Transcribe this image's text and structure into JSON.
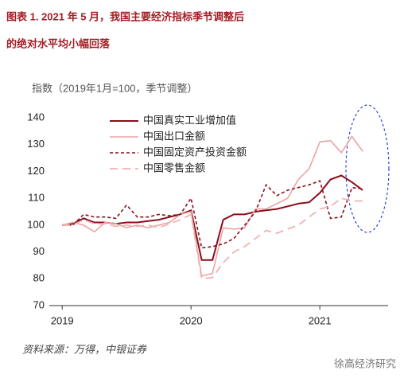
{
  "chart_data": {
    "type": "line",
    "title": "图表 1.  2021 年 5 月，我国主要经济指标季节调整后",
    "subtitle": "的绝对水平均小幅回落",
    "y_label": "指数（2019年1月=100，季节调整）",
    "source": "资料来源：万得，中银证券",
    "watermark": "徐高经济研究",
    "x": [
      2019,
      2019.083,
      2019.167,
      2019.25,
      2019.333,
      2019.417,
      2019.5,
      2019.583,
      2019.667,
      2019.75,
      2019.833,
      2019.917,
      2020,
      2020.083,
      2020.167,
      2020.25,
      2020.333,
      2020.417,
      2020.5,
      2020.583,
      2020.667,
      2020.75,
      2020.833,
      2020.917,
      2021,
      2021.083,
      2021.167,
      2021.25,
      2021.333
    ],
    "series": [
      {
        "name": "中国真实工业增加值",
        "color": "#8b0d1a",
        "style": "solid",
        "width": 2,
        "values": [
          100,
          100.5,
          102.5,
          101,
          101,
          100.5,
          101,
          101,
          101.5,
          102,
          103,
          104,
          105.5,
          87,
          87,
          102,
          104,
          104,
          105,
          105.5,
          106,
          107,
          108,
          108.5,
          112,
          117,
          118.5,
          116,
          113
        ]
      },
      {
        "name": "中国出口金额",
        "color": "#eca3a3",
        "style": "solid",
        "width": 1.6,
        "values": [
          100,
          101,
          100,
          97.5,
          101,
          100.5,
          99,
          100,
          99,
          100,
          101,
          104,
          105,
          81,
          82,
          99,
          98.5,
          99,
          106,
          106,
          108,
          110,
          117,
          121,
          131,
          131.5,
          127,
          133,
          127.5
        ]
      },
      {
        "name": "中国固定资产投资金额",
        "color": "#8b0d1a",
        "style": "dotted",
        "width": 1.6,
        "values": [
          100,
          100,
          104,
          103,
          103,
          102.5,
          107.5,
          103,
          103,
          104,
          103.5,
          104,
          110,
          91.5,
          92,
          93,
          95,
          100,
          105,
          115,
          111,
          113,
          114,
          115,
          116.5,
          102.5,
          103,
          114,
          113.5
        ]
      },
      {
        "name": "中国零售金额",
        "color": "#f0b3b3",
        "style": "dashed",
        "width": 1.8,
        "values": [
          100,
          100,
          102,
          100.5,
          100.5,
          99.5,
          100,
          99.5,
          100,
          99,
          100.5,
          102,
          104,
          80,
          80.5,
          86,
          90,
          92,
          95,
          98,
          97,
          98.5,
          100,
          103,
          106,
          107,
          110,
          109,
          109
        ]
      }
    ],
    "xlim": [
      2018.9,
      2021.53
    ],
    "xticks": [
      2019,
      2020,
      2021
    ],
    "ylim": [
      70,
      140
    ],
    "yticks": [
      70,
      80,
      90,
      100,
      110,
      120,
      130,
      140
    ],
    "legend": "upper left",
    "grid": false
  }
}
